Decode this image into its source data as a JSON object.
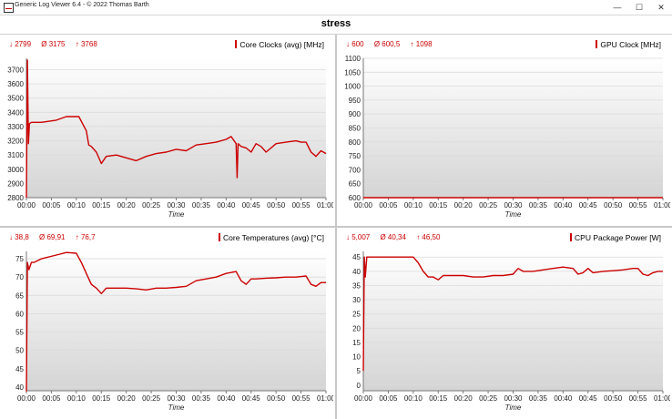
{
  "window": {
    "title": "Generic Log Viewer 6.4 - © 2022 Thomas Barth",
    "minimize_label": "—",
    "maximize_label": "☐",
    "close_label": "✕"
  },
  "header": {
    "title": "stress"
  },
  "colors": {
    "series": "#cc0000",
    "grid": "#dcdcdc",
    "axis": "#777777"
  },
  "chart_data": [
    {
      "type": "line",
      "title": "Core Clocks (avg) [MHz]",
      "stats": {
        "min": "↓ 2799",
        "avg": "Ø 3175",
        "max": "↑ 3768"
      },
      "xlabel": "Time",
      "x_ticks": [
        "00:00",
        "00:05",
        "00:10",
        "00:15",
        "00:20",
        "00:25",
        "00:30",
        "00:35",
        "00:40",
        "00:45",
        "00:50",
        "00:55",
        "01:00"
      ],
      "y_ticks": [
        "2800",
        "2900",
        "3000",
        "3100",
        "3200",
        "3300",
        "3400",
        "3500",
        "3600",
        "3700"
      ],
      "ylim": [
        2800,
        3780
      ],
      "xlim": [
        0,
        60
      ],
      "series": [
        {
          "x": [
            0,
            0.2,
            0.4,
            0.6,
            1,
            3,
            6,
            8,
            10.5,
            12,
            12.5,
            13,
            14,
            15,
            16,
            18,
            20,
            22,
            24,
            26,
            28,
            30,
            32,
            34,
            36,
            38,
            40,
            41,
            42,
            42.2,
            42.4,
            43,
            44,
            45,
            46,
            47,
            48,
            50,
            52,
            54,
            55,
            56,
            57,
            58,
            59,
            60
          ],
          "y": [
            2800,
            3768,
            3180,
            3320,
            3330,
            3330,
            3345,
            3370,
            3370,
            3270,
            3170,
            3160,
            3120,
            3040,
            3090,
            3100,
            3080,
            3060,
            3090,
            3110,
            3120,
            3140,
            3130,
            3170,
            3180,
            3190,
            3210,
            3230,
            3180,
            2940,
            3180,
            3160,
            3150,
            3120,
            3180,
            3160,
            3120,
            3180,
            3190,
            3200,
            3190,
            3190,
            3120,
            3090,
            3130,
            3110
          ]
        }
      ]
    },
    {
      "type": "line",
      "title": "GPU Clock [MHz]",
      "stats": {
        "min": "↓ 600",
        "avg": "Ø 600,5",
        "max": "↑ 1098"
      },
      "xlabel": "Time",
      "x_ticks": [
        "00:00",
        "00:05",
        "00:10",
        "00:15",
        "00:20",
        "00:25",
        "00:30",
        "00:35",
        "00:40",
        "00:45",
        "00:50",
        "00:55",
        "01:00"
      ],
      "y_ticks": [
        "600",
        "650",
        "700",
        "750",
        "800",
        "850",
        "900",
        "950",
        "1000",
        "1050",
        "1100"
      ],
      "ylim": [
        600,
        1100
      ],
      "xlim": [
        0,
        60
      ],
      "series": [
        {
          "x": [
            0,
            60
          ],
          "y": [
            600,
            600
          ]
        }
      ]
    },
    {
      "type": "line",
      "title": "Core Temperatures (avg) [°C]",
      "stats": {
        "min": "↓ 38,8",
        "avg": "Ø 69,91",
        "max": "↑ 76,7"
      },
      "xlabel": "Time",
      "x_ticks": [
        "00:00",
        "00:05",
        "00:10",
        "00:15",
        "00:20",
        "00:25",
        "00:30",
        "00:35",
        "00:40",
        "00:45",
        "00:50",
        "00:55",
        "01:00"
      ],
      "y_ticks": [
        "40",
        "45",
        "50",
        "55",
        "60",
        "65",
        "70",
        "75"
      ],
      "ylim": [
        39,
        77
      ],
      "xlim": [
        0,
        60
      ],
      "series": [
        {
          "x": [
            0,
            0.2,
            0.5,
            1,
            1.5,
            3,
            6,
            8,
            10,
            11,
            12,
            13,
            14,
            15,
            16,
            18,
            20,
            22,
            24,
            26,
            28,
            30,
            32,
            34,
            36,
            38,
            40,
            42,
            43,
            44,
            45,
            46,
            48,
            50,
            52,
            54,
            56,
            57,
            58,
            59,
            60
          ],
          "y": [
            38.8,
            74,
            72,
            74,
            74,
            75,
            76,
            76.7,
            76.5,
            74,
            71,
            68,
            67,
            65.5,
            67,
            67,
            67,
            66.8,
            66.5,
            67,
            67,
            67.2,
            67.5,
            69,
            69.5,
            70,
            71,
            71.5,
            69,
            68,
            69.5,
            69.5,
            69.7,
            69.8,
            70,
            70,
            70.3,
            68,
            67.5,
            68.5,
            68.5
          ]
        }
      ]
    },
    {
      "type": "line",
      "title": "CPU Package Power [W]",
      "stats": {
        "min": "↓ 5,007",
        "avg": "Ø 40,34",
        "max": "↑ 46,50"
      },
      "xlabel": "Time",
      "x_ticks": [
        "00:00",
        "00:05",
        "00:10",
        "00:15",
        "00:20",
        "00:25",
        "00:30",
        "00:35",
        "00:40",
        "00:45",
        "00:50",
        "00:55",
        "01:00"
      ],
      "y_ticks": [
        "0",
        "5",
        "10",
        "15",
        "20",
        "25",
        "30",
        "35",
        "40",
        "45"
      ],
      "ylim": [
        -2,
        47
      ],
      "xlim": [
        0,
        60
      ],
      "series": [
        {
          "x": [
            0,
            0.2,
            0.4,
            0.7,
            1,
            2,
            5,
            8,
            10,
            11,
            12,
            13,
            14,
            15,
            16,
            18,
            20,
            22,
            24,
            26,
            28,
            30,
            31,
            32,
            34,
            36,
            38,
            40,
            42,
            43,
            44,
            45,
            46,
            48,
            50,
            52,
            54,
            55,
            56,
            57,
            58,
            59,
            60
          ],
          "y": [
            5,
            45,
            38,
            45,
            45,
            45,
            45,
            45,
            45,
            43,
            40,
            38,
            38,
            37,
            38.5,
            38.5,
            38.5,
            38,
            38,
            38.5,
            38.5,
            39,
            41,
            40,
            40,
            40.5,
            41,
            41.5,
            41,
            39,
            39.5,
            41,
            39.5,
            40,
            40.2,
            40.5,
            41,
            41,
            39,
            38.5,
            39.5,
            40,
            40
          ]
        }
      ]
    }
  ]
}
